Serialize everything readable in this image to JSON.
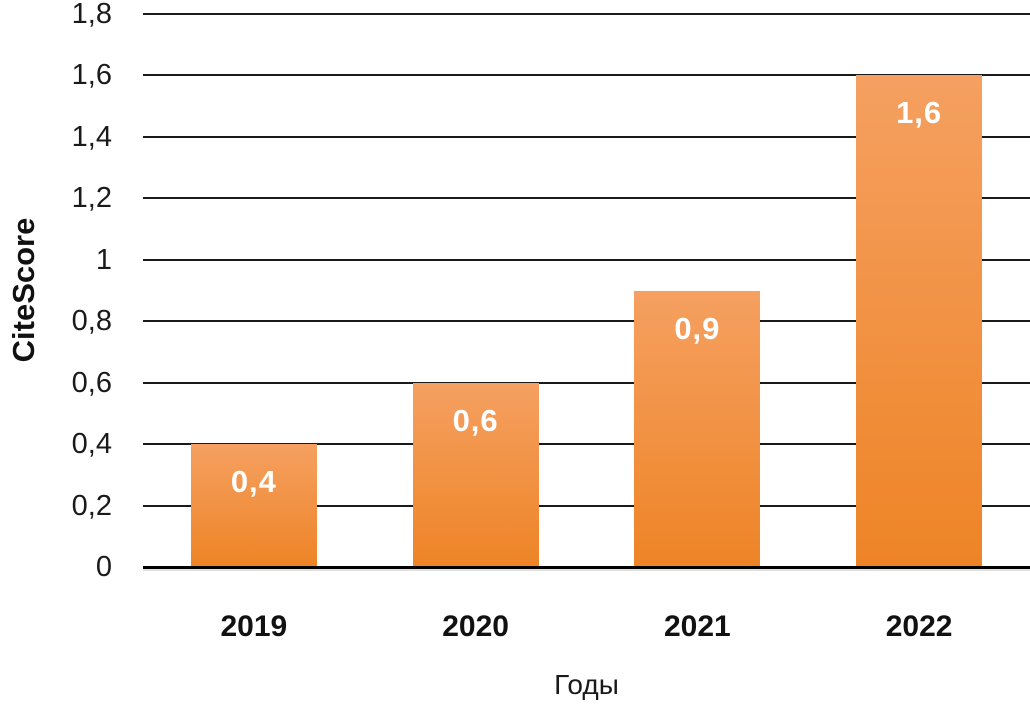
{
  "chart_data": {
    "type": "bar",
    "title": "",
    "categories": [
      "2019",
      "2020",
      "2021",
      "2022"
    ],
    "values": [
      0.4,
      0.6,
      0.9,
      1.6
    ],
    "value_labels": [
      "0,4",
      "0,6",
      "0,9",
      "1,6"
    ],
    "ylabel": "CiteScore",
    "xlabel": "Годы",
    "ylim": [
      0,
      1.8
    ],
    "ytick_values": [
      0,
      0.2,
      0.4,
      0.6,
      0.8,
      1.0,
      1.2,
      1.4,
      1.6,
      1.8
    ],
    "ytick_labels": [
      "0",
      "0,2",
      "0,4",
      "0,6",
      "0,8",
      "1",
      "1,2",
      "1,4",
      "1,6",
      "1,8"
    ],
    "grid": true,
    "legend": "none",
    "colors": {
      "bar_gradient_top": "#F5A061",
      "bar_gradient_bottom": "#EE8426",
      "gridline": "#1a1a1a",
      "axis_line": "#000000",
      "text": "#111111",
      "value_label_text": "#ffffff",
      "background": "#ffffff"
    }
  }
}
